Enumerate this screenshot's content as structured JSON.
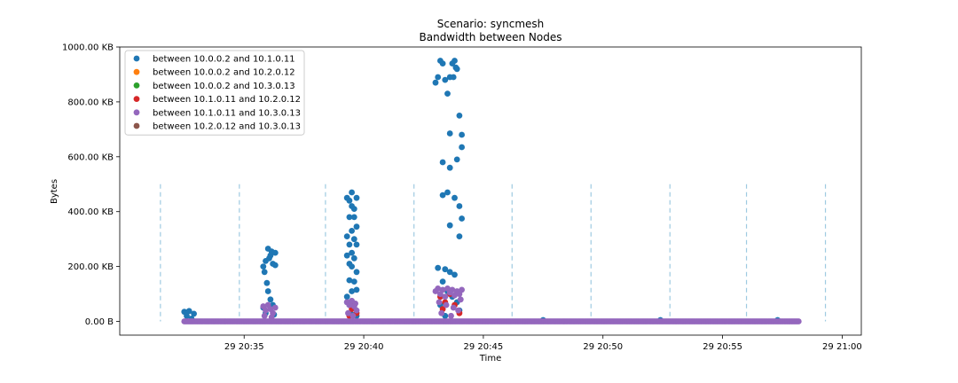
{
  "chart_data": {
    "type": "scatter",
    "title": "Scenario: syncmesh",
    "subtitle": "Bandwidth between Nodes",
    "xlabel": "Time",
    "ylabel": "Bytes",
    "x_ticks": [
      "29 20:35",
      "29 20:40",
      "29 20:45",
      "29 20:50",
      "29 20:55",
      "29 21:00"
    ],
    "x_tick_minutes": [
      35,
      40,
      45,
      50,
      55,
      60
    ],
    "xlim_minutes": [
      29.8,
      60.8
    ],
    "y_ticks": [
      "0.00 B",
      "200.00 KB",
      "400.00 KB",
      "600.00 KB",
      "800.00 KB",
      "1000.00 KB"
    ],
    "y_tick_values_kb": [
      0,
      200,
      400,
      600,
      800,
      1000
    ],
    "ylim_kb": [
      -50,
      1000
    ],
    "x_unit_note": "minutes after 20:00 on day 29",
    "grid": false,
    "legend_position": "upper-left",
    "vertical_markers_minutes": [
      31.5,
      34.8,
      38.4,
      42.1,
      46.2,
      49.5,
      52.8,
      56.0,
      59.3
    ],
    "vertical_marker_top_kb": 500,
    "series": [
      {
        "name": "between 10.0.0.2 and 10.1.0.11",
        "color": "#1f77b4",
        "points": [
          [
            32.5,
            35
          ],
          [
            32.6,
            20
          ],
          [
            32.7,
            38
          ],
          [
            32.8,
            10
          ],
          [
            32.9,
            28
          ],
          [
            35.8,
            200
          ],
          [
            35.9,
            220
          ],
          [
            36.0,
            265
          ],
          [
            36.1,
            240
          ],
          [
            36.2,
            210
          ],
          [
            36.3,
            250
          ],
          [
            35.85,
            180
          ],
          [
            36.05,
            230
          ],
          [
            36.15,
            255
          ],
          [
            35.95,
            140
          ],
          [
            36.0,
            110
          ],
          [
            36.1,
            80
          ],
          [
            36.2,
            60
          ],
          [
            35.9,
            30
          ],
          [
            36.25,
            25
          ],
          [
            35.8,
            50
          ],
          [
            36.3,
            205
          ],
          [
            39.3,
            450
          ],
          [
            39.4,
            440
          ],
          [
            39.5,
            470
          ],
          [
            39.6,
            410
          ],
          [
            39.7,
            450
          ],
          [
            39.5,
            420
          ],
          [
            39.4,
            380
          ],
          [
            39.6,
            380
          ],
          [
            39.7,
            345
          ],
          [
            39.3,
            310
          ],
          [
            39.5,
            330
          ],
          [
            39.6,
            300
          ],
          [
            39.4,
            280
          ],
          [
            39.7,
            280
          ],
          [
            39.5,
            250
          ],
          [
            39.3,
            240
          ],
          [
            39.6,
            230
          ],
          [
            39.4,
            210
          ],
          [
            39.5,
            200
          ],
          [
            39.7,
            180
          ],
          [
            39.4,
            150
          ],
          [
            39.6,
            145
          ],
          [
            39.5,
            110
          ],
          [
            39.7,
            115
          ],
          [
            39.3,
            90
          ],
          [
            39.4,
            60
          ],
          [
            39.6,
            50
          ],
          [
            39.5,
            25
          ],
          [
            39.7,
            20
          ],
          [
            39.3,
            70
          ],
          [
            43.0,
            870
          ],
          [
            43.1,
            890
          ],
          [
            43.2,
            950
          ],
          [
            43.3,
            940
          ],
          [
            43.5,
            830
          ],
          [
            43.6,
            890
          ],
          [
            43.7,
            940
          ],
          [
            43.8,
            950
          ],
          [
            43.9,
            920
          ],
          [
            43.4,
            880
          ],
          [
            43.75,
            890
          ],
          [
            43.85,
            925
          ],
          [
            44.0,
            750
          ],
          [
            43.6,
            685
          ],
          [
            44.1,
            680
          ],
          [
            44.1,
            635
          ],
          [
            43.3,
            580
          ],
          [
            43.6,
            560
          ],
          [
            43.9,
            590
          ],
          [
            43.3,
            460
          ],
          [
            43.5,
            470
          ],
          [
            43.8,
            450
          ],
          [
            44.0,
            420
          ],
          [
            44.1,
            375
          ],
          [
            43.6,
            350
          ],
          [
            44.0,
            310
          ],
          [
            43.1,
            195
          ],
          [
            43.4,
            190
          ],
          [
            43.6,
            180
          ],
          [
            43.8,
            170
          ],
          [
            43.3,
            145
          ],
          [
            43.5,
            110
          ],
          [
            43.7,
            90
          ],
          [
            43.9,
            70
          ],
          [
            43.2,
            60
          ],
          [
            44.0,
            40
          ],
          [
            43.4,
            20
          ],
          [
            47.5,
            5
          ],
          [
            52.4,
            5
          ],
          [
            57.3,
            5
          ]
        ]
      },
      {
        "name": "between 10.0.0.2 and 10.2.0.12",
        "color": "#ff7f0e",
        "points": []
      },
      {
        "name": "between 10.0.0.2 and 10.3.0.13",
        "color": "#2ca02c",
        "points": []
      },
      {
        "name": "between 10.1.0.11 and 10.2.0.12",
        "color": "#d62728",
        "points": [
          [
            39.4,
            20
          ],
          [
            39.5,
            45
          ],
          [
            39.6,
            60
          ],
          [
            39.7,
            30
          ],
          [
            43.2,
            90
          ],
          [
            43.4,
            70
          ],
          [
            43.6,
            100
          ],
          [
            43.8,
            60
          ],
          [
            44.0,
            30
          ],
          [
            43.3,
            45
          ]
        ]
      },
      {
        "name": "between 10.1.0.11 and 10.3.0.13",
        "color": "#9467bd",
        "points": [
          [
            35.8,
            55
          ],
          [
            35.9,
            40
          ],
          [
            36.0,
            60
          ],
          [
            36.1,
            45
          ],
          [
            36.2,
            30
          ],
          [
            36.3,
            50
          ],
          [
            35.85,
            20
          ],
          [
            36.15,
            15
          ],
          [
            39.3,
            70
          ],
          [
            39.4,
            60
          ],
          [
            39.5,
            75
          ],
          [
            39.6,
            55
          ],
          [
            39.7,
            40
          ],
          [
            39.35,
            30
          ],
          [
            39.55,
            20
          ],
          [
            39.65,
            65
          ],
          [
            43.0,
            110
          ],
          [
            43.1,
            120
          ],
          [
            43.2,
            100
          ],
          [
            43.3,
            115
          ],
          [
            43.4,
            90
          ],
          [
            43.5,
            120
          ],
          [
            43.6,
            105
          ],
          [
            43.7,
            115
          ],
          [
            43.8,
            95
          ],
          [
            43.9,
            110
          ],
          [
            44.0,
            100
          ],
          [
            44.1,
            115
          ],
          [
            43.15,
            70
          ],
          [
            43.45,
            60
          ],
          [
            43.75,
            50
          ],
          [
            44.05,
            80
          ],
          [
            43.25,
            30
          ],
          [
            43.65,
            20
          ],
          [
            43.95,
            40
          ]
        ]
      },
      {
        "name": "between 10.2.0.12 and 10.3.0.13",
        "color": "#8c564b",
        "points": []
      }
    ],
    "baseline_band": {
      "series": "between 10.1.0.11 and 10.3.0.13",
      "x_range_minutes": [
        32.5,
        58.2
      ],
      "value_kb": 0
    }
  }
}
